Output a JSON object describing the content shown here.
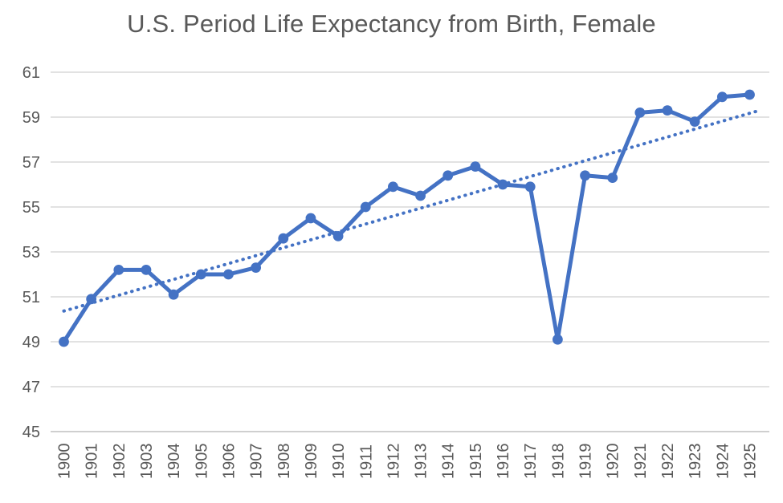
{
  "title": "U.S. Period Life Expectancy from Birth, Female",
  "chart_data": {
    "type": "line",
    "title": "U.S. Period Life Expectancy from Birth, Female",
    "categories": [
      1900,
      1901,
      1902,
      1903,
      1904,
      1905,
      1906,
      1907,
      1908,
      1909,
      1910,
      1911,
      1912,
      1913,
      1914,
      1915,
      1916,
      1917,
      1918,
      1919,
      1920,
      1921,
      1922,
      1923,
      1924,
      1925
    ],
    "values": [
      49.0,
      50.9,
      52.2,
      52.2,
      51.1,
      52.0,
      52.0,
      52.3,
      53.6,
      54.5,
      53.7,
      55.0,
      55.9,
      55.5,
      56.4,
      56.8,
      56.0,
      55.9,
      49.1,
      56.4,
      56.3,
      59.2,
      59.3,
      58.8,
      59.9,
      60.0
    ],
    "y_ticks": [
      45,
      47,
      49,
      51,
      53,
      55,
      57,
      59,
      61
    ],
    "ylim": [
      45,
      61
    ],
    "xlabel": "",
    "ylabel": "",
    "grid": "horizontal",
    "legend": "none",
    "x_label_rotation": -90,
    "marker": "circle",
    "trendline": {
      "type": "linear",
      "style": "dotted"
    },
    "colors": {
      "series": "#4472C4",
      "trendline": "#4472C4",
      "gridline": "#D9D9D9",
      "axis_line": "#BFBFBF",
      "tick_label": "#595959",
      "title": "#595959",
      "background": "#FFFFFF"
    }
  }
}
